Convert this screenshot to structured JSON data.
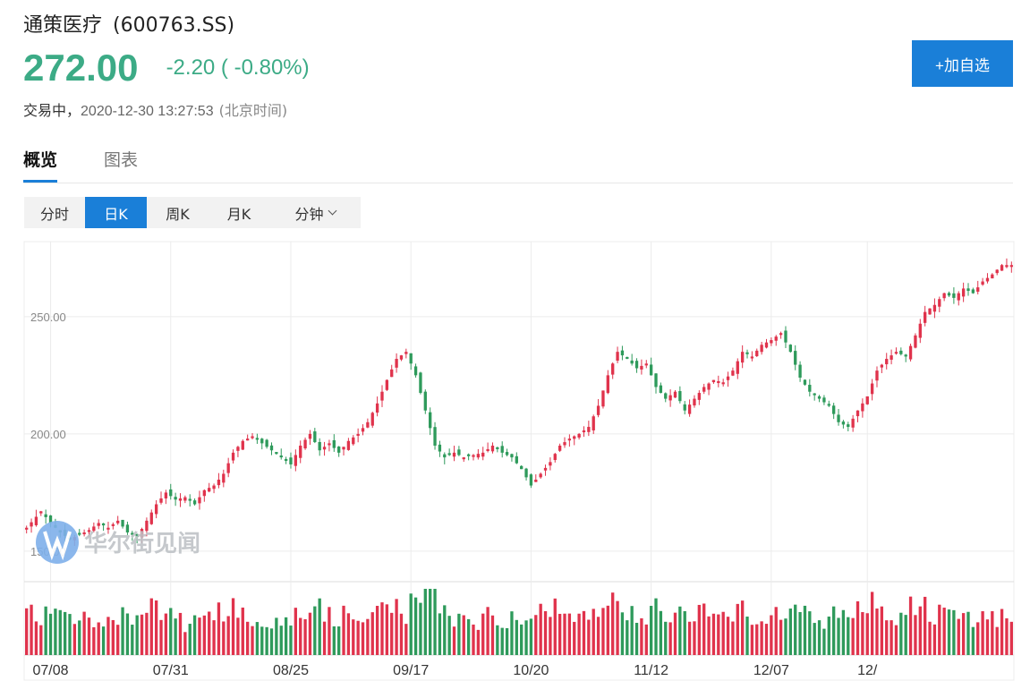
{
  "header": {
    "name": "通策医疗",
    "code": "(600763.SS)",
    "price": "272.00",
    "change": "-2.20 ( -0.80%)",
    "status": "交易中，",
    "timestamp": "2020-12-30 13:27:53",
    "timezone": "(北京时间)",
    "watch_button": "+加自选"
  },
  "tabs": [
    {
      "label": "概览",
      "active": true
    },
    {
      "label": "图表",
      "active": false
    }
  ],
  "periods": [
    {
      "label": "分时",
      "active": false
    },
    {
      "label": "日K",
      "active": true
    },
    {
      "label": "周K",
      "active": false
    },
    {
      "label": "月K",
      "active": false
    },
    {
      "label": "分钟",
      "active": false,
      "dropdown": true
    }
  ],
  "watermark": "华尔街见闻",
  "colors": {
    "up": "#e0334c",
    "down": "#2e9a5b",
    "accent": "#1a7fd8",
    "price": "#3cab86",
    "grid": "#ececec"
  },
  "chart_data": {
    "type": "candlestick",
    "y_ticks": [
      "250.00",
      "200.00",
      "150.00"
    ],
    "y_tick_values": [
      250,
      200,
      150
    ],
    "ylim": [
      137,
      282
    ],
    "x_labels": [
      {
        "label": "07/08",
        "index": 5
      },
      {
        "label": "07/31",
        "index": 30
      },
      {
        "label": "08/25",
        "index": 55
      },
      {
        "label": "09/17",
        "index": 80
      },
      {
        "label": "10/20",
        "index": 105
      },
      {
        "label": "11/12",
        "index": 130
      },
      {
        "label": "12/07",
        "index": 155
      },
      {
        "label": "12/",
        "index": 175
      }
    ],
    "close_path": [
      [
        0,
        160
      ],
      [
        3,
        167
      ],
      [
        5,
        162
      ],
      [
        7,
        158
      ],
      [
        9,
        155
      ],
      [
        11,
        157
      ],
      [
        13,
        159
      ],
      [
        15,
        162
      ],
      [
        17,
        160
      ],
      [
        19,
        163
      ],
      [
        21,
        158
      ],
      [
        23,
        156
      ],
      [
        25,
        163
      ],
      [
        27,
        170
      ],
      [
        29,
        175
      ],
      [
        31,
        172
      ],
      [
        33,
        173
      ],
      [
        35,
        170
      ],
      [
        37,
        176
      ],
      [
        39,
        178
      ],
      [
        41,
        183
      ],
      [
        43,
        192
      ],
      [
        45,
        197
      ],
      [
        47,
        199
      ],
      [
        49,
        196
      ],
      [
        51,
        193
      ],
      [
        53,
        190
      ],
      [
        55,
        187
      ],
      [
        57,
        195
      ],
      [
        59,
        200
      ],
      [
        61,
        193
      ],
      [
        63,
        196
      ],
      [
        65,
        192
      ],
      [
        67,
        197
      ],
      [
        69,
        200
      ],
      [
        71,
        205
      ],
      [
        73,
        213
      ],
      [
        75,
        223
      ],
      [
        77,
        232
      ],
      [
        79,
        235
      ],
      [
        81,
        225
      ],
      [
        83,
        210
      ],
      [
        85,
        195
      ],
      [
        87,
        190
      ],
      [
        89,
        192
      ],
      [
        91,
        190
      ],
      [
        93,
        191
      ],
      [
        95,
        192
      ],
      [
        97,
        195
      ],
      [
        99,
        192
      ],
      [
        101,
        190
      ],
      [
        103,
        185
      ],
      [
        105,
        178
      ],
      [
        107,
        183
      ],
      [
        109,
        188
      ],
      [
        111,
        195
      ],
      [
        113,
        198
      ],
      [
        115,
        200
      ],
      [
        117,
        203
      ],
      [
        119,
        212
      ],
      [
        121,
        225
      ],
      [
        123,
        235
      ],
      [
        125,
        232
      ],
      [
        127,
        228
      ],
      [
        129,
        230
      ],
      [
        131,
        220
      ],
      [
        133,
        215
      ],
      [
        135,
        218
      ],
      [
        137,
        210
      ],
      [
        139,
        215
      ],
      [
        141,
        220
      ],
      [
        143,
        223
      ],
      [
        145,
        222
      ],
      [
        147,
        227
      ],
      [
        149,
        235
      ],
      [
        151,
        233
      ],
      [
        153,
        238
      ],
      [
        155,
        240
      ],
      [
        157,
        243
      ],
      [
        159,
        235
      ],
      [
        161,
        224
      ],
      [
        163,
        218
      ],
      [
        165,
        215
      ],
      [
        167,
        212
      ],
      [
        169,
        205
      ],
      [
        171,
        203
      ],
      [
        173,
        210
      ],
      [
        175,
        216
      ],
      [
        177,
        227
      ],
      [
        179,
        232
      ],
      [
        181,
        235
      ],
      [
        183,
        233
      ],
      [
        185,
        242
      ],
      [
        187,
        252
      ],
      [
        189,
        255
      ],
      [
        191,
        260
      ],
      [
        193,
        258
      ],
      [
        195,
        262
      ],
      [
        197,
        260
      ],
      [
        199,
        265
      ],
      [
        201,
        268
      ],
      [
        203,
        272
      ],
      [
        205,
        272
      ]
    ]
  }
}
